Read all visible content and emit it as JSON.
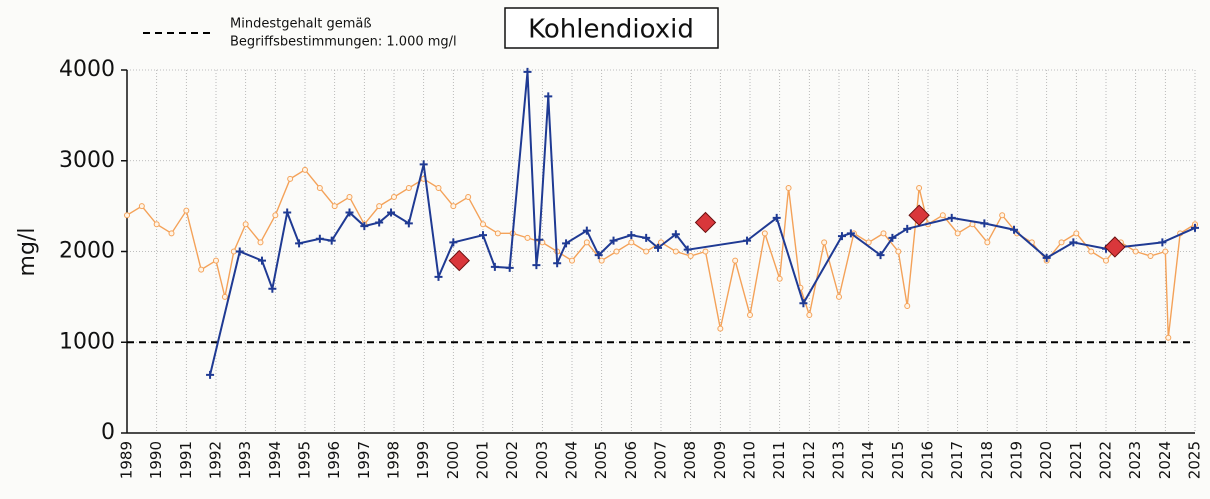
{
  "chart_data": {
    "type": "line",
    "title": "Kohlendioxid",
    "ylabel": "mg/l",
    "reference_line": {
      "value": 1000,
      "label": [
        "Mindestgehalt gemäß",
        "Begriffsbestimmungen: 1.000 mg/l"
      ],
      "color": "#000000"
    },
    "xlim": [
      1989,
      2025
    ],
    "xticks": [
      1989,
      1990,
      1991,
      1992,
      1993,
      1994,
      1995,
      1996,
      1997,
      1998,
      1999,
      2000,
      2001,
      2002,
      2003,
      2004,
      2005,
      2006,
      2007,
      2008,
      2009,
      2010,
      2011,
      2012,
      2013,
      2014,
      2015,
      2016,
      2017,
      2018,
      2019,
      2020,
      2021,
      2022,
      2023,
      2024,
      2025
    ],
    "ylim": [
      0,
      4000
    ],
    "yticks": [
      0,
      1000,
      2000,
      3000,
      4000
    ],
    "grid": true,
    "series": [
      {
        "color": "#f4a259",
        "line": true,
        "marker": "circle",
        "x": [
          1989,
          1989.5,
          1990,
          1990.5,
          1991,
          1991.5,
          1992,
          1992.3,
          1992.6,
          1993,
          1993.5,
          1994,
          1994.5,
          1995,
          1995.5,
          1996,
          1996.5,
          1997,
          1997.5,
          1998,
          1998.5,
          1999,
          1999.5,
          2000,
          2000.5,
          2001,
          2001.5,
          2002,
          2002.5,
          2003,
          2003.5,
          2004,
          2004.5,
          2005,
          2005.5,
          2006,
          2006.5,
          2007,
          2007.5,
          2008,
          2008.5,
          2009,
          2009.5,
          2010,
          2010.5,
          2011,
          2011.3,
          2011.7,
          2012,
          2012.5,
          2013,
          2013.5,
          2014,
          2014.5,
          2015,
          2015.3,
          2015.7,
          2016,
          2016.5,
          2017,
          2017.5,
          2018,
          2018.5,
          2019,
          2019.5,
          2020,
          2020.5,
          2021,
          2021.5,
          2022,
          2022.5,
          2023,
          2023.5,
          2024,
          2024.1,
          2024.5,
          2025
        ],
        "values": [
          2400,
          2500,
          2300,
          2200,
          2450,
          1800,
          1900,
          1500,
          2000,
          2300,
          2100,
          2400,
          2800,
          2900,
          2700,
          2500,
          2600,
          2300,
          2500,
          2600,
          2700,
          2800,
          2700,
          2500,
          2600,
          2300,
          2200,
          2200,
          2150,
          2100,
          2000,
          1900,
          2100,
          1900,
          2000,
          2100,
          2000,
          2100,
          2000,
          1950,
          2000,
          1150,
          1900,
          1300,
          2200,
          1700,
          2700,
          1600,
          1300,
          2100,
          1500,
          2200,
          2100,
          2200,
          2000,
          1400,
          2700,
          2300,
          2400,
          2200,
          2300,
          2100,
          2400,
          2200,
          2100,
          1900,
          2100,
          2200,
          2000,
          1900,
          2100,
          2000,
          1950,
          2000,
          1050,
          2200,
          2300
        ]
      },
      {
        "color": "#1f3a93",
        "line": true,
        "marker": "plus",
        "x": [
          1991.8,
          1992.8,
          1993.55,
          1993.9,
          1994.4,
          1994.8,
          1995.5,
          1995.9,
          1996.5,
          1997.0,
          1997.5,
          1997.9,
          1998.5,
          1999.0,
          1999.5,
          2000.0,
          2001.0,
          2001.4,
          2001.9,
          2002.5,
          2002.8,
          2002.9,
          2003.2,
          2003.5,
          2003.8,
          2004.5,
          2004.9,
          2005.4,
          2006.0,
          2006.5,
          2006.9,
          2007.5,
          2007.9,
          2009.9,
          2010.9,
          2011.8,
          2013.1,
          2013.4,
          2014.4,
          2014.8,
          2015.3,
          2016.8,
          2017.9,
          2018.9,
          2020.0,
          2020.9,
          2022.0,
          2023.9,
          2025.0
        ],
        "values": [
          640,
          2000,
          1900,
          1590,
          2430,
          2090,
          2140,
          2120,
          2430,
          2280,
          2320,
          2430,
          2310,
          2960,
          1720,
          2100,
          2180,
          1830,
          1820,
          3980,
          1850,
          2130,
          3710,
          1870,
          2090,
          2230,
          1960,
          2120,
          2180,
          2150,
          2040,
          2190,
          2020,
          2120,
          2370,
          1430,
          2170,
          2200,
          1960,
          2150,
          2250,
          2370,
          2310,
          2240,
          1930,
          2100,
          2030,
          2100,
          2260
        ]
      },
      {
        "color": "#d9373b",
        "line": false,
        "marker": "diamond",
        "x": [
          2000.2,
          2008.5,
          2015.7,
          2022.3
        ],
        "values": [
          1900,
          2320,
          2400,
          2050
        ]
      }
    ]
  }
}
